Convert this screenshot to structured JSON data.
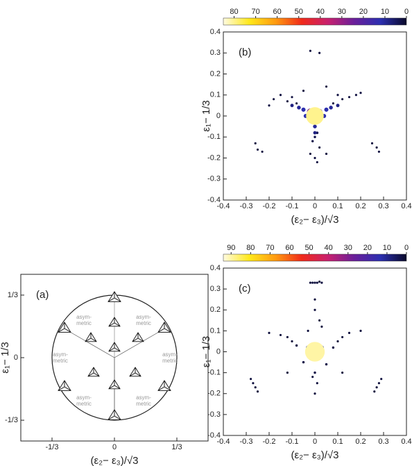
{
  "chart_data": [
    {
      "type": "density",
      "panel_label": "(b)",
      "x_label": "(ε₂− ε₃)/√3",
      "y_label": "ε₁− 1/3",
      "xlim": [
        -0.4,
        0.4
      ],
      "ylim": [
        -0.4,
        0.4
      ],
      "xticks": [
        -0.4,
        -0.3,
        -0.2,
        -0.1,
        0,
        0.1,
        0.2,
        0.3,
        0.4
      ],
      "yticks": [
        -0.4,
        -0.3,
        -0.2,
        -0.1,
        0,
        0.1,
        0.2,
        0.3,
        0.4
      ],
      "colorbar": {
        "lim": [
          85,
          0
        ],
        "ticks": [
          80,
          70,
          60,
          50,
          40,
          30,
          20,
          10,
          0
        ],
        "colors": [
          "#fffbe0",
          "#ffe81a",
          "#ff9a10",
          "#f02a1a",
          "#c8206e",
          "#6a1f9a",
          "#2c2fb0",
          "#0a0a2a"
        ]
      },
      "points": [
        {
          "x": -0.18,
          "y": 0.08,
          "value": 2
        },
        {
          "x": -0.15,
          "y": 0.1,
          "value": 2
        },
        {
          "x": -0.12,
          "y": 0.07,
          "value": 2
        },
        {
          "x": -0.1,
          "y": 0.09,
          "value": 2
        },
        {
          "x": -0.08,
          "y": 0.06,
          "value": 2
        },
        {
          "x": 0.08,
          "y": 0.06,
          "value": 2
        },
        {
          "x": 0.1,
          "y": 0.1,
          "value": 2
        },
        {
          "x": 0.12,
          "y": 0.08,
          "value": 2
        },
        {
          "x": 0.15,
          "y": 0.09,
          "value": 2
        },
        {
          "x": 0.18,
          "y": 0.1,
          "value": 2
        },
        {
          "x": 0.05,
          "y": 0.14,
          "value": 2
        },
        {
          "x": -0.05,
          "y": 0.12,
          "value": 2
        },
        {
          "x": 0.02,
          "y": -0.15,
          "value": 2
        },
        {
          "x": -0.02,
          "y": -0.18,
          "value": 2
        },
        {
          "x": 0,
          "y": -0.2,
          "value": 2
        },
        {
          "x": 0.01,
          "y": -0.22,
          "value": 2
        },
        {
          "x": -0.01,
          "y": -0.12,
          "value": 3
        },
        {
          "x": 0,
          "y": -0.1,
          "value": 3
        },
        {
          "x": 0.01,
          "y": -0.08,
          "value": 4
        },
        {
          "x": -0.26,
          "y": -0.13,
          "value": 2
        },
        {
          "x": -0.25,
          "y": -0.16,
          "value": 2
        },
        {
          "x": -0.23,
          "y": -0.17,
          "value": 2
        },
        {
          "x": 0.25,
          "y": -0.13,
          "value": 2
        },
        {
          "x": 0.27,
          "y": -0.15,
          "value": 2
        },
        {
          "x": 0.28,
          "y": -0.17,
          "value": 2
        },
        {
          "x": -0.02,
          "y": 0.31,
          "value": 2
        },
        {
          "x": 0.02,
          "y": 0.3,
          "value": 2
        },
        {
          "x": 0.05,
          "y": -0.18,
          "value": 2
        },
        {
          "x": -0.2,
          "y": 0.05,
          "value": 2
        },
        {
          "x": 0.2,
          "y": 0.11,
          "value": 2
        },
        {
          "x": -0.1,
          "y": 0.05,
          "value": 8
        },
        {
          "x": -0.07,
          "y": 0.04,
          "value": 10
        },
        {
          "x": -0.05,
          "y": 0.03,
          "value": 12
        },
        {
          "x": 0.05,
          "y": 0.03,
          "value": 12
        },
        {
          "x": 0.07,
          "y": 0.04,
          "value": 10
        },
        {
          "x": 0.1,
          "y": 0.05,
          "value": 8
        },
        {
          "x": 0,
          "y": -0.05,
          "value": 10
        },
        {
          "x": 0,
          "y": -0.08,
          "value": 8
        },
        {
          "x": -0.04,
          "y": 0,
          "value": 12
        },
        {
          "x": 0.04,
          "y": 0,
          "value": 12
        },
        {
          "x": 0.02,
          "y": 0.02,
          "value": 20
        },
        {
          "x": -0.02,
          "y": 0.02,
          "value": 25
        },
        {
          "x": 0,
          "y": -0.02,
          "value": 30
        },
        {
          "x": 0,
          "y": 0.01,
          "value": 45
        },
        {
          "x": 0,
          "y": 0,
          "value": 60
        },
        {
          "x": 0,
          "y": 0,
          "value": 80
        }
      ]
    },
    {
      "type": "density",
      "panel_label": "(c)",
      "x_label": "(ε₂− ε₃)/√3",
      "y_label": "ε₁− 1/3",
      "xlim": [
        -0.4,
        0.4
      ],
      "ylim": [
        -0.4,
        0.4
      ],
      "xticks": [
        -0.4,
        -0.3,
        -0.2,
        -0.1,
        0,
        0.1,
        0.2,
        0.3,
        0.4
      ],
      "yticks": [
        -0.4,
        -0.3,
        -0.2,
        -0.1,
        0,
        0.1,
        0.2,
        0.3,
        0.4
      ],
      "colorbar": {
        "lim": [
          94,
          0
        ],
        "ticks": [
          90,
          80,
          70,
          60,
          50,
          40,
          30,
          20,
          10,
          0
        ],
        "colors": [
          "#fffbe0",
          "#ffe81a",
          "#ff9a10",
          "#f02a1a",
          "#c8206e",
          "#6a1f9a",
          "#2c2fb0",
          "#0a0a2a"
        ]
      },
      "points": [
        {
          "x": -0.02,
          "y": 0.33,
          "value": 2
        },
        {
          "x": -0.01,
          "y": 0.33,
          "value": 2
        },
        {
          "x": 0,
          "y": 0.33,
          "value": 2
        },
        {
          "x": 0.01,
          "y": 0.33,
          "value": 2
        },
        {
          "x": 0.02,
          "y": 0.335,
          "value": 2
        },
        {
          "x": 0.03,
          "y": 0.33,
          "value": 2
        },
        {
          "x": -0.28,
          "y": -0.13,
          "value": 2
        },
        {
          "x": -0.27,
          "y": -0.15,
          "value": 2
        },
        {
          "x": -0.26,
          "y": -0.17,
          "value": 2
        },
        {
          "x": -0.25,
          "y": -0.19,
          "value": 2
        },
        {
          "x": 0.26,
          "y": -0.19,
          "value": 2
        },
        {
          "x": 0.27,
          "y": -0.17,
          "value": 2
        },
        {
          "x": 0.28,
          "y": -0.15,
          "value": 2
        },
        {
          "x": 0.29,
          "y": -0.13,
          "value": 2
        },
        {
          "x": -0.15,
          "y": 0.08,
          "value": 2
        },
        {
          "x": -0.12,
          "y": 0.07,
          "value": 2
        },
        {
          "x": -0.1,
          "y": 0.05,
          "value": 2
        },
        {
          "x": 0.1,
          "y": 0.05,
          "value": 2
        },
        {
          "x": 0.12,
          "y": 0.07,
          "value": 2
        },
        {
          "x": 0.15,
          "y": 0.09,
          "value": 2
        },
        {
          "x": -0.08,
          "y": 0.03,
          "value": 3
        },
        {
          "x": 0.08,
          "y": 0.02,
          "value": 3
        },
        {
          "x": -0.05,
          "y": -0.05,
          "value": 3
        },
        {
          "x": 0.05,
          "y": -0.06,
          "value": 3
        },
        {
          "x": 0,
          "y": -0.1,
          "value": 3
        },
        {
          "x": 0.01,
          "y": -0.15,
          "value": 2
        },
        {
          "x": -0.01,
          "y": -0.12,
          "value": 2
        },
        {
          "x": 0,
          "y": 0.2,
          "value": 2
        },
        {
          "x": 0.02,
          "y": 0.15,
          "value": 2
        },
        {
          "x": -0.12,
          "y": -0.1,
          "value": 2
        },
        {
          "x": 0.12,
          "y": -0.1,
          "value": 2
        },
        {
          "x": -0.2,
          "y": 0.09,
          "value": 2
        },
        {
          "x": 0.2,
          "y": 0.1,
          "value": 2
        },
        {
          "x": -0.03,
          "y": 0.1,
          "value": 2
        },
        {
          "x": 0.03,
          "y": 0.12,
          "value": 2
        },
        {
          "x": 0,
          "y": -0.2,
          "value": 2
        },
        {
          "x": 0,
          "y": 0.25,
          "value": 2
        },
        {
          "x": -0.03,
          "y": 0.02,
          "value": 12
        },
        {
          "x": 0.03,
          "y": 0.02,
          "value": 12
        },
        {
          "x": 0,
          "y": -0.03,
          "value": 15
        },
        {
          "x": 0,
          "y": 0.01,
          "value": 30
        },
        {
          "x": 0,
          "y": 0,
          "value": 55
        },
        {
          "x": 0,
          "y": 0,
          "value": 90
        }
      ]
    },
    {
      "type": "schematic",
      "panel_label": "(a)",
      "x_label": "(ε₂− ε₃)/√3",
      "y_label": "ε₁− 1/3",
      "xlim": [
        -0.5,
        0.5
      ],
      "ylim": [
        -0.444,
        0.444
      ],
      "xticks": [
        {
          "value": -0.3333,
          "label": "-1/3"
        },
        0,
        {
          "value": 0.3333,
          "label": "1/3"
        }
      ],
      "yticks": [
        {
          "value": -0.3333,
          "label": "-1/3"
        },
        0,
        {
          "value": 0.3333,
          "label": "1/3"
        }
      ],
      "region_labels": [
        [
          "asym-",
          "metric"
        ],
        [
          "asym-",
          "metric"
        ],
        [
          "asym-",
          "metric"
        ],
        [
          "asym-",
          "metric"
        ],
        [
          "asym-",
          "metric"
        ],
        [
          "asym-",
          "metric"
        ]
      ]
    }
  ]
}
